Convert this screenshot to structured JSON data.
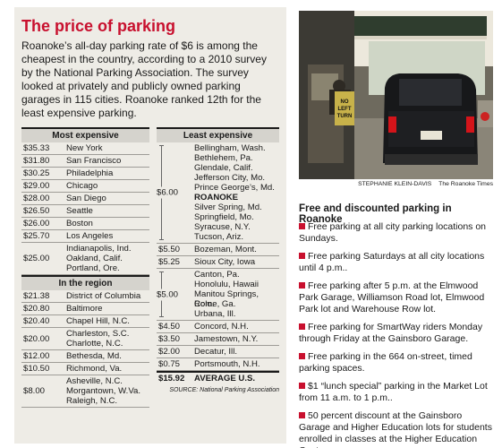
{
  "title": "The price of parking",
  "intro": "Roanoke’s all-day parking rate of $6 is among the cheapest in the country, according to a 2010 survey by the National Parking Association. The survey looked at privately and publicly owned parking garages in 115 cities. Roanoke ranked 12th for the least expensive parking.",
  "most_expensive": {
    "heading": "Most expensive",
    "rows": [
      {
        "price": "$35.33",
        "city": "New York"
      },
      {
        "price": "$31.80",
        "city": "San Francisco"
      },
      {
        "price": "$30.25",
        "city": "Philadelphia"
      },
      {
        "price": "$29.00",
        "city": "Chicago"
      },
      {
        "price": "$28.00",
        "city": "San Diego"
      },
      {
        "price": "$26.50",
        "city": "Seattle"
      },
      {
        "price": "$26.00",
        "city": "Boston"
      },
      {
        "price": "$25.70",
        "city": "Los Angeles"
      },
      {
        "price": "$25.00",
        "city": "Indianapolis, Ind.\nOakland, Calif.\nPortland, Ore."
      }
    ]
  },
  "in_region": {
    "heading": "In the region",
    "rows": [
      {
        "price": "$21.38",
        "city": "District of Columbia"
      },
      {
        "price": "$20.80",
        "city": "Baltimore"
      },
      {
        "price": "$20.40",
        "city": "Chapel Hill, N.C."
      },
      {
        "price": "$20.00",
        "city": "Charleston, S.C.\nCharlotte, N.C."
      },
      {
        "price": "$12.00",
        "city": "Bethesda, Md."
      },
      {
        "price": "$10.50",
        "city": "Richmond, Va."
      },
      {
        "price": "$8.00",
        "city": "Asheville, N.C.\nMorgantown, W.Va.\nRaleigh, N.C."
      }
    ]
  },
  "least_expensive": {
    "heading": "Least expensive",
    "group_six": {
      "price": "$6.00",
      "cities": [
        "Bellingham, Wash.",
        "Bethlehem, Pa.",
        "Glendale, Calif.",
        "Jefferson City, Mo.",
        "Prince George’s, Md.",
        "ROANOKE",
        "Silver Spring, Md.",
        "Springfield, Mo.",
        "Syracuse, N.Y.",
        "Tucson, Ariz."
      ]
    },
    "rows_a": [
      {
        "price": "$5.50",
        "city": "Bozeman, Mont."
      },
      {
        "price": "$5.25",
        "city": "Sioux City, Iowa"
      }
    ],
    "group_five": {
      "price": "$5.00",
      "cities": [
        "Canton, Pa.",
        "Honolulu, Hawaii",
        "Manitou Springs, Colo.",
        "Rome, Ga.",
        "Urbana, Ill."
      ]
    },
    "rows_b": [
      {
        "price": "$4.50",
        "city": "Concord, N.H."
      },
      {
        "price": "$3.50",
        "city": "Jamestown, N.Y."
      },
      {
        "price": "$2.00",
        "city": "Decatur, Ill."
      },
      {
        "price": "$0.75",
        "city": "Portsmouth, N.H."
      }
    ],
    "average": {
      "price": "$15.92",
      "label": "AVERAGE U.S."
    },
    "source": "SOURCE: National Parking Association"
  },
  "photo": {
    "credit_name": "STEPHANIE KLEIN-DAVIS",
    "credit_org": "The Roanoke Times",
    "sign_text": "NO LEFT TURN"
  },
  "free_parking": {
    "heading": "Free and discounted parking in Roanoke",
    "items": [
      "Free parking at all city parking locations on Sundays.",
      "Free parking Saturdays at all city locations until 4 p.m..",
      "Free parking after 5 p.m. at the Elmwood Park Garage, Williamson Road lot, Elmwood Park lot and Warehouse Row lot.",
      "Free parking for SmartWay riders Monday through Friday at the Gainsboro Garage.",
      "Free parking in the 664 on-street, timed parking spaces.",
      "$1 “lunch special” parking in the Market Lot from 11 a.m. to 1 p.m..",
      "50 percent discount at the Gainsboro Garage and Higher Education lots for students enrolled in classes at the Higher Education Center."
    ]
  },
  "colors": {
    "accent": "#c8102e",
    "panel": "#eeece6",
    "header": "#d5d3cd"
  }
}
